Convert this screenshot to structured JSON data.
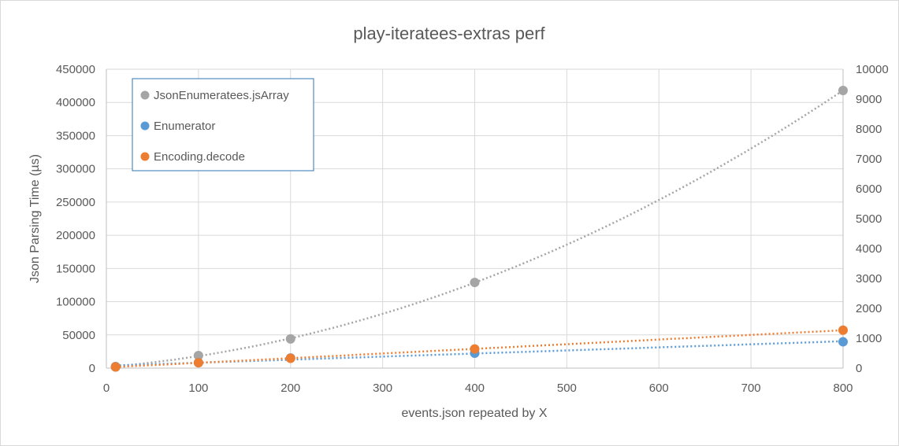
{
  "chart_data": {
    "type": "scatter",
    "title": "play-iteratees-extras perf",
    "xlabel": "events.json repeated by X",
    "ylabel": "Json Parsing Time (µs)",
    "xlim": [
      0,
      800
    ],
    "ylim": [
      0,
      450000
    ],
    "y2lim": [
      0,
      10000
    ],
    "x_ticks": [
      "0",
      "100",
      "200",
      "300",
      "400",
      "500",
      "600",
      "700",
      "800"
    ],
    "y_ticks": [
      "0",
      "50000",
      "100000",
      "150000",
      "200000",
      "250000",
      "300000",
      "350000",
      "400000",
      "450000"
    ],
    "y2_ticks": [
      "0",
      "1000",
      "2000",
      "3000",
      "4000",
      "5000",
      "6000",
      "7000",
      "8000",
      "9000",
      "10000"
    ],
    "grid": true,
    "legend_position": "top-left",
    "trendlines": "dotted",
    "series": [
      {
        "name": "JsonEnumeratees.jsArray",
        "color": "#a5a5a5",
        "axis": "left",
        "trend": "polynomial",
        "x": [
          10,
          100,
          200,
          400,
          800
        ],
        "y": [
          2500,
          19000,
          44000,
          129000,
          418000
        ]
      },
      {
        "name": "Enumerator",
        "color": "#5b9bd5",
        "axis": "right",
        "trend": "linear",
        "x": [
          10,
          100,
          200,
          400,
          800
        ],
        "y": [
          40,
          180,
          340,
          500,
          880
        ]
      },
      {
        "name": "Encoding.decode",
        "color": "#ed7d31",
        "axis": "right",
        "trend": "linear",
        "x": [
          10,
          100,
          200,
          400,
          800
        ],
        "y": [
          40,
          180,
          330,
          640,
          1270
        ]
      }
    ]
  }
}
